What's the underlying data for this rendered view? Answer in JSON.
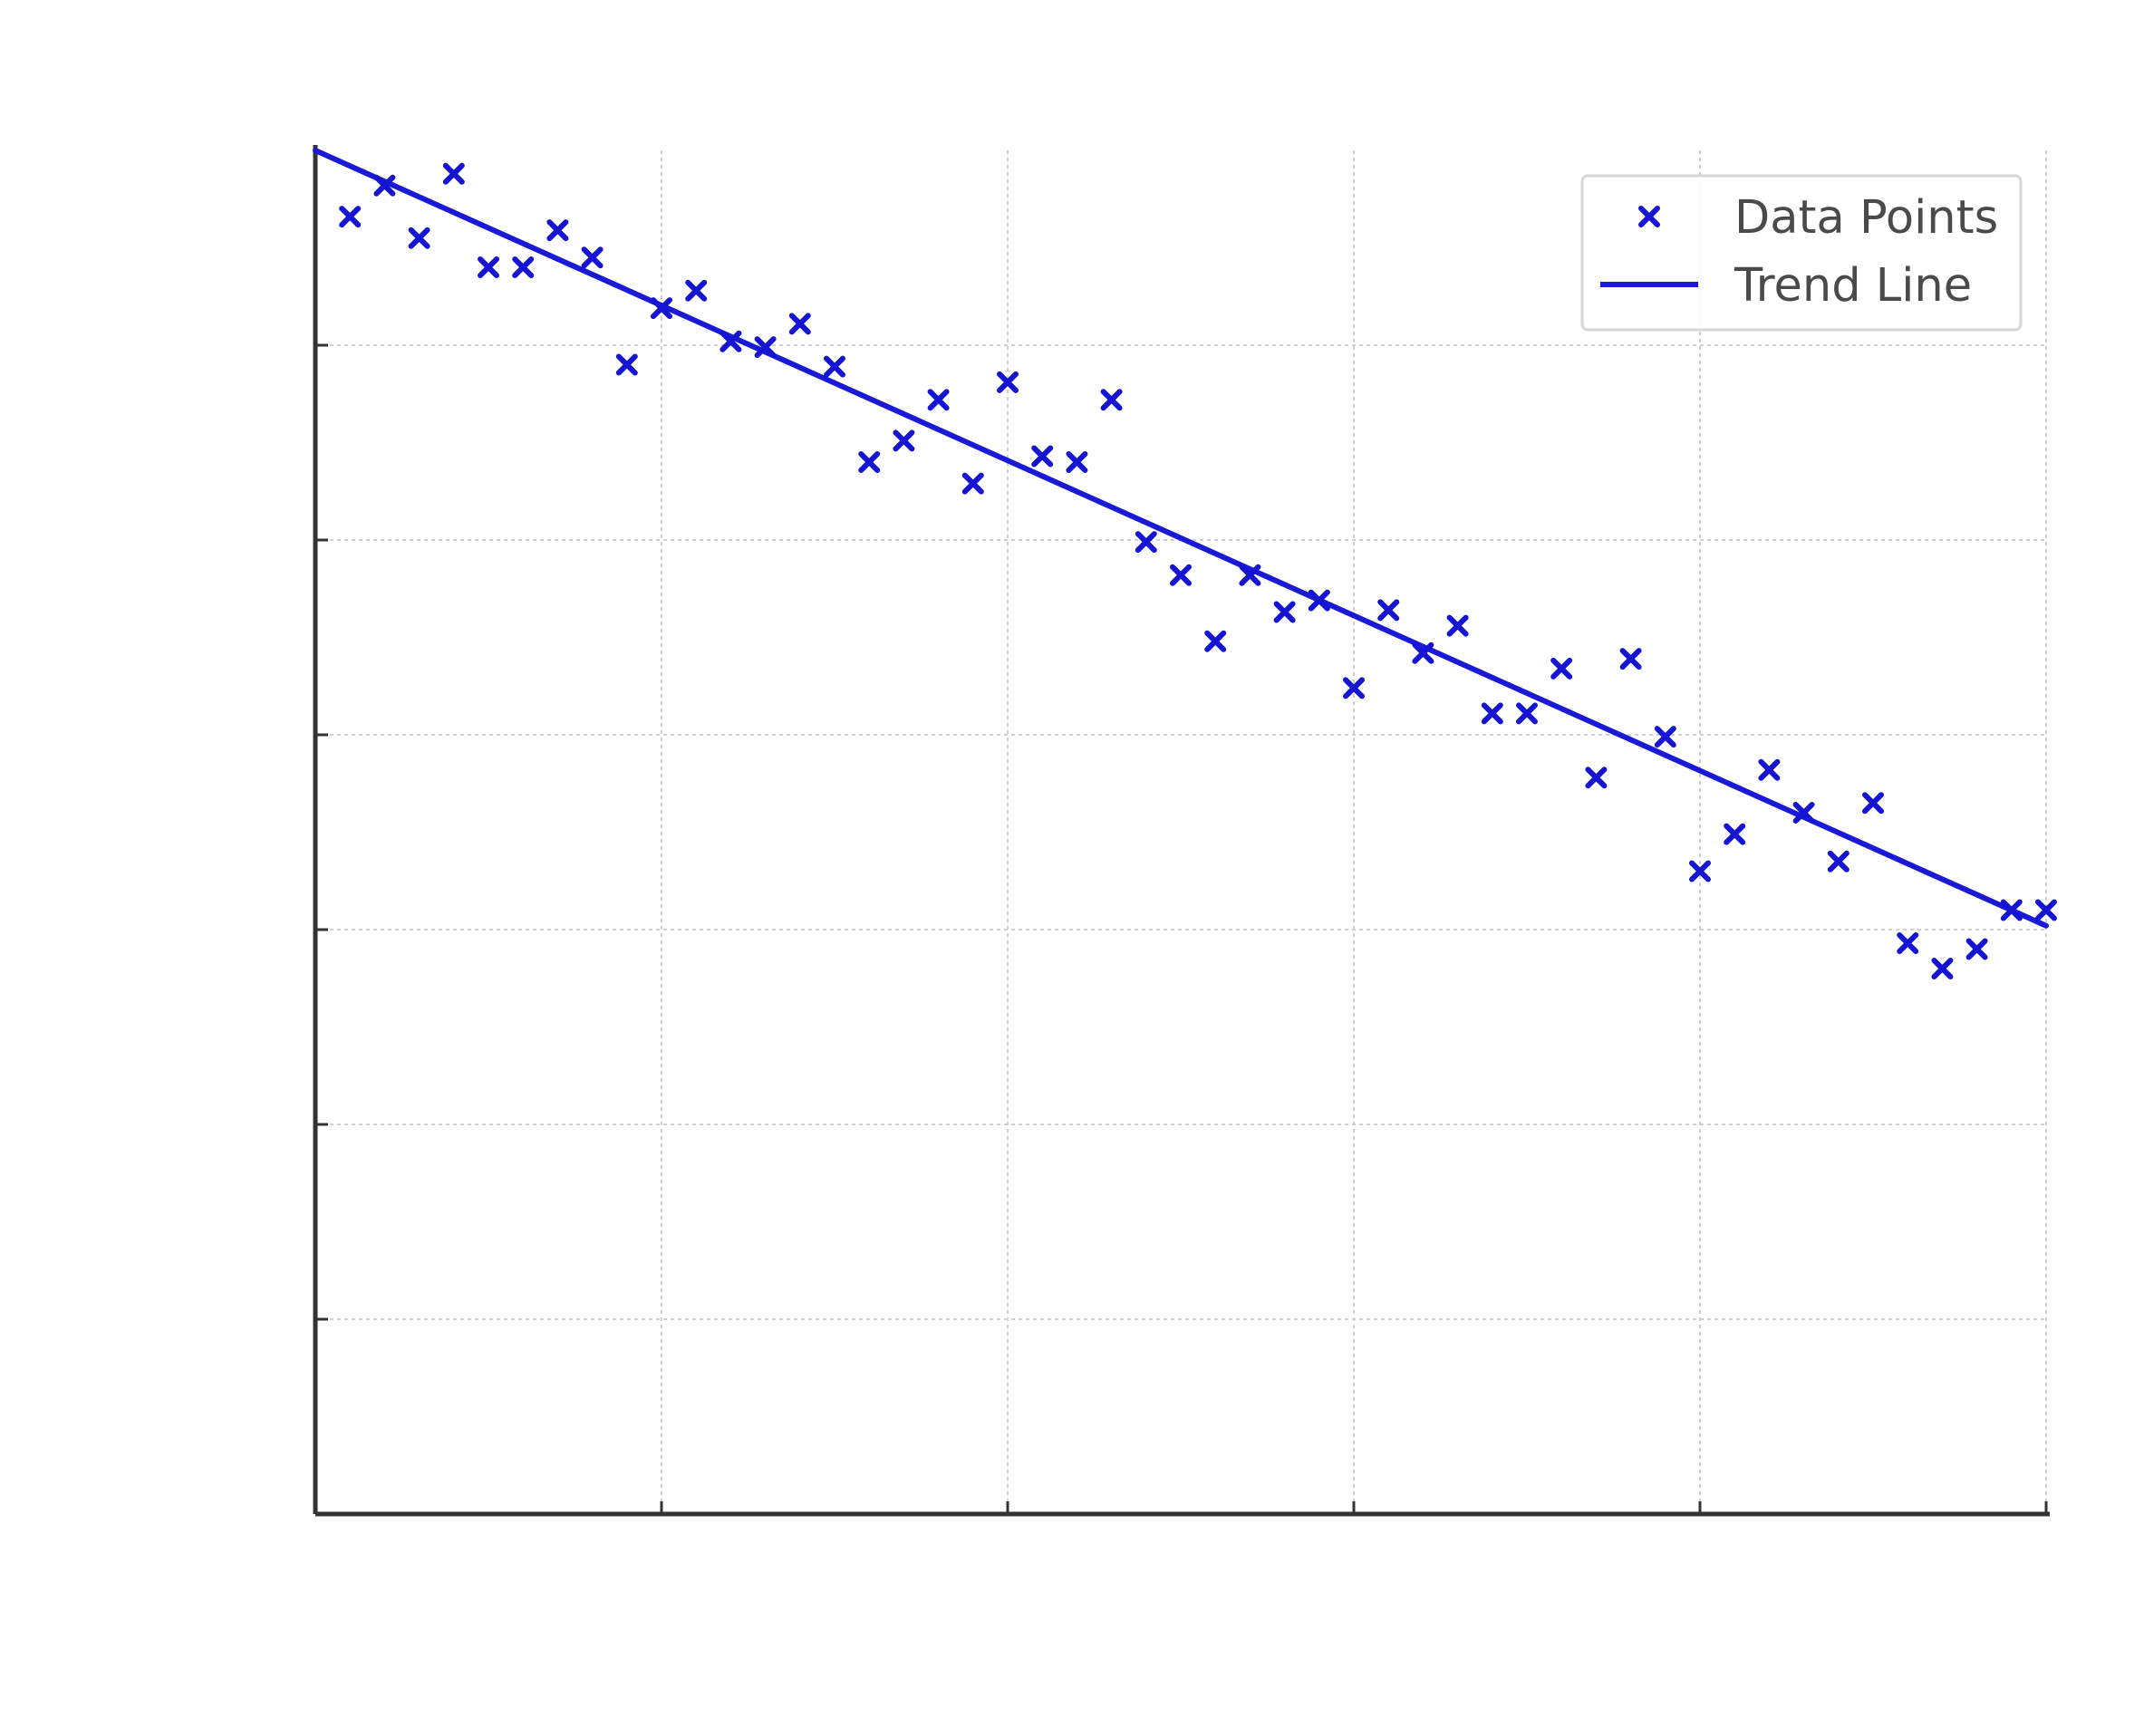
{
  "chart_data": {
    "type": "scatter",
    "title": "",
    "xlabel": "",
    "ylabel": "",
    "xlim": [
      0,
      50
    ],
    "ylim": [
      0,
      7
    ],
    "xticks": [
      0,
      10,
      20,
      30,
      40,
      50
    ],
    "yticks": [
      1,
      2,
      3,
      4,
      5,
      6
    ],
    "grid": true,
    "legend": {
      "placement": "upper right",
      "entries": [
        "Data Points",
        "Trend Line"
      ]
    },
    "colors": {
      "points": "#1414d2",
      "line": "#1a1ad6",
      "axes": "#333333",
      "grid": "#d0d0d0"
    },
    "series": [
      {
        "name": "Data Points",
        "type": "scatter",
        "marker": "x",
        "x": [
          1,
          2,
          3,
          4,
          5,
          6,
          7,
          8,
          9,
          10,
          11,
          12,
          13,
          14,
          15,
          16,
          17,
          18,
          19,
          20,
          21,
          22,
          23,
          24,
          25,
          26,
          27,
          28,
          29,
          30,
          31,
          32,
          33,
          34,
          35,
          36,
          37,
          38,
          39,
          40,
          41,
          42,
          43,
          44,
          45,
          46,
          47,
          48,
          49,
          50
        ],
        "y": [
          6.66,
          6.82,
          6.55,
          6.88,
          6.4,
          6.4,
          6.59,
          6.45,
          5.9,
          6.19,
          6.28,
          6.02,
          5.99,
          6.11,
          5.89,
          5.4,
          5.51,
          5.72,
          5.29,
          5.81,
          5.43,
          5.4,
          5.72,
          4.99,
          4.82,
          4.48,
          4.82,
          4.63,
          4.69,
          4.24,
          4.64,
          4.42,
          4.56,
          4.11,
          4.11,
          4.34,
          3.78,
          4.39,
          3.99,
          3.3,
          3.49,
          3.82,
          3.6,
          3.35,
          3.65,
          2.93,
          2.8,
          2.9,
          3.1,
          3.1
        ]
      },
      {
        "name": "Trend Line",
        "type": "line",
        "x": [
          0,
          50
        ],
        "y": [
          7.0,
          3.02
        ]
      }
    ]
  }
}
